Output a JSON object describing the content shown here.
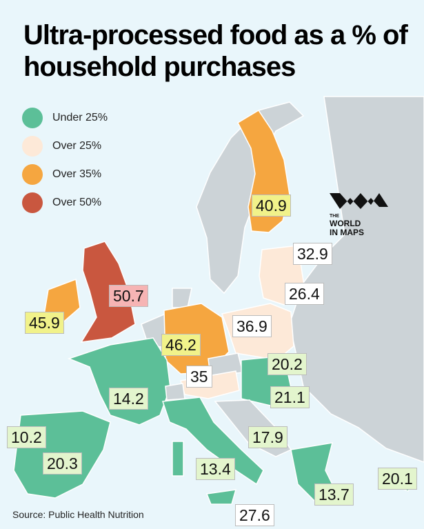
{
  "title": "Ultra-processed food as a % of household purchases",
  "legend": [
    {
      "label": "Under 25%",
      "color": "#5cbf98"
    },
    {
      "label": "Over 25%",
      "color": "#fde9d8"
    },
    {
      "label": "Over 35%",
      "color": "#f5a640"
    },
    {
      "label": "Over 50%",
      "color": "#c9573f"
    }
  ],
  "labels": [
    {
      "value": 50.7,
      "color": "#f6b4b4"
    },
    {
      "value": 45.9,
      "color": "#f1f28a"
    },
    {
      "value": 40.9,
      "color": "#f1f28a"
    },
    {
      "value": 32.9,
      "color": "#ffffff"
    },
    {
      "value": 26.4,
      "color": "#ffffff"
    },
    {
      "value": 36.9,
      "color": "#ffffff"
    },
    {
      "value": 46.2,
      "color": "#f1f28a"
    },
    {
      "value": 20.2,
      "color": "#e3f5cd"
    },
    {
      "value": 35,
      "color": "#ffffff"
    },
    {
      "value": 14.2,
      "color": "#e3f5cd"
    },
    {
      "value": 21.1,
      "color": "#e3f5cd"
    },
    {
      "value": 10.2,
      "color": "#e3f5cd"
    },
    {
      "value": 17.9,
      "color": "#e3f5cd"
    },
    {
      "value": 20.3,
      "color": "#e3f5cd"
    },
    {
      "value": 13.4,
      "color": "#e3f5cd"
    },
    {
      "value": 20.1,
      "color": "#e3f5cd"
    },
    {
      "value": 13.7,
      "color": "#e3f5cd"
    },
    {
      "value": 27.6,
      "color": "#ffffff"
    }
  ],
  "logo": [
    "THE",
    "WORLD",
    "IN MAPS"
  ],
  "source": "Source: Public Health Nutrition"
}
